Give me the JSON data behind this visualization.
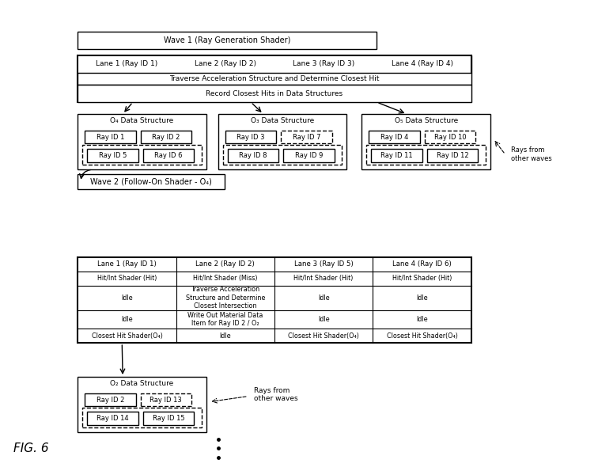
{
  "bg_color": "#ffffff",
  "title": "FIG. 6",
  "wave1_label": "Wave 1 (Ray Generation Shader)",
  "lanes_top": [
    "Lane 1 (Ray ID 1)",
    "Lane 2 (Ray ID 2)",
    "Lane 3 (Ray ID 3)",
    "Lane 4 (Ray ID 4)"
  ],
  "traverse_label": "Traverse Acceleration Structure and Determine Closest Hit",
  "record_label": "Record Closest Hits in Data Structures",
  "ds_o4_label": "O₄ Data Structure",
  "ds_o3_label": "O₃ Data Structure",
  "ds_o5_label": "O₅ Data Structure",
  "wave2_label": "Wave 2 (Follow-On Shader - O₄)",
  "rays_other_label": "Rays from\nother waves",
  "table_lanes": [
    "Lane 1 (Ray ID 1)",
    "Lane 2 (Ray ID 2)",
    "Lane 3 (Ray ID 5)",
    "Lane 4 (Ray ID 6)"
  ],
  "table_row0": [
    "Hit/Int Shader (Hit)",
    "Hit/Int Shader (Miss)",
    "Hit/Int Shader (Hit)",
    "Hit/Int Shader (Hit)"
  ],
  "table_row1": [
    "Idle",
    "Traverse Acceleration\nStructure and Determine\nClosest Intersection",
    "Idle",
    "Idle"
  ],
  "table_row2": [
    "Idle",
    "Write Out Material Data\nItem for Ray ID 2 / O₂",
    "Idle",
    "Idle"
  ],
  "table_row3": [
    "Closest Hit Shader(O₄)",
    "Idle",
    "Closest Hit Shader(O₄)",
    "Closest Hit Shader(O₄)"
  ],
  "ds_o2_label": "O₂ Data Structure",
  "bottom_rays_label": "Rays from\nother waves"
}
